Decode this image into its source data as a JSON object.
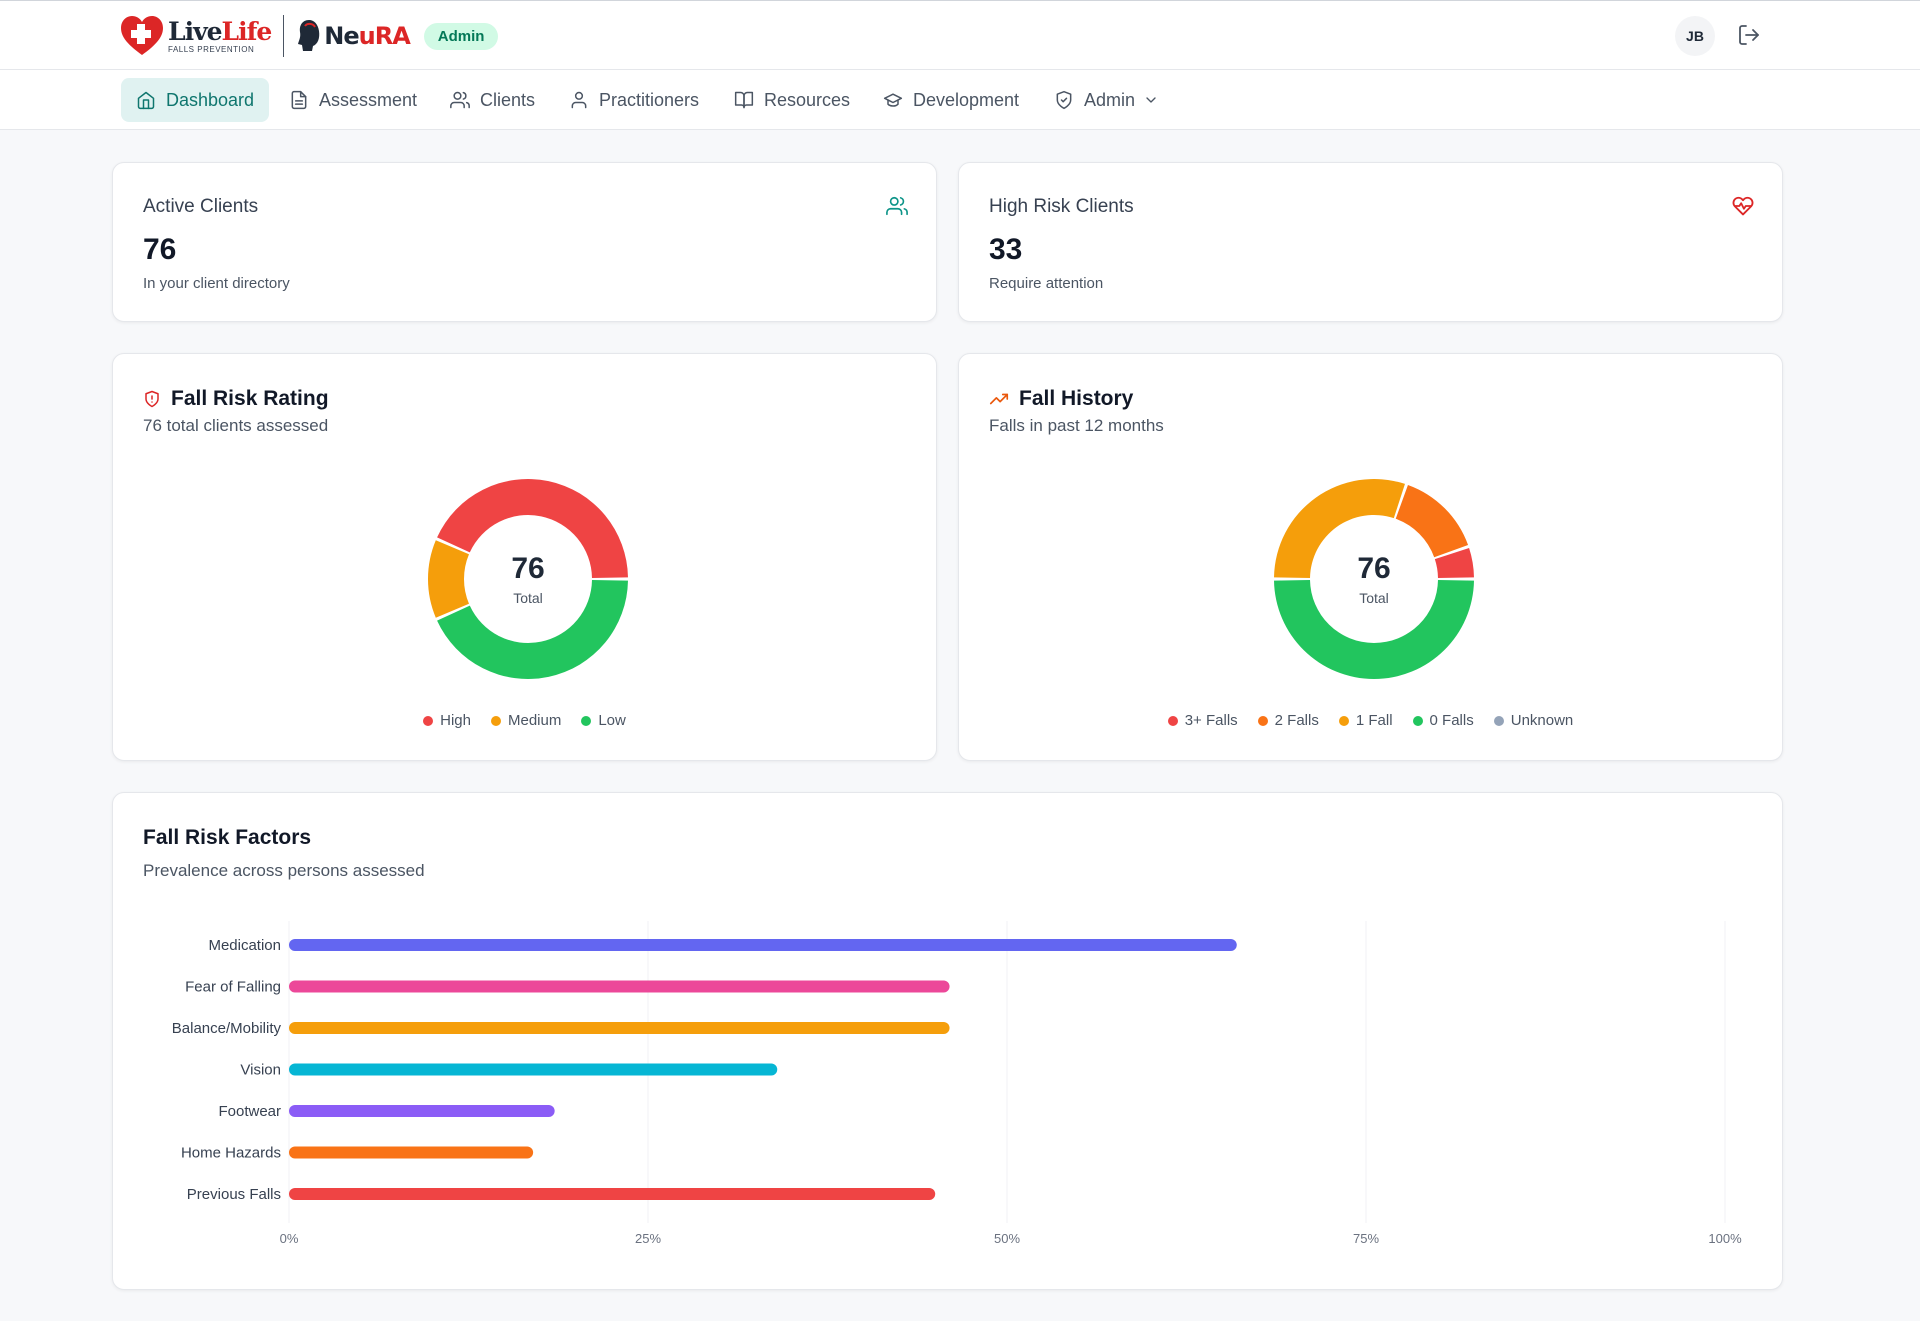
{
  "header": {
    "brand_primary": "Live",
    "brand_secondary": "Life",
    "brand_tagline": "FALLS PREVENTION",
    "partner_prefix": "Ne",
    "partner_suffix": "uRA",
    "role_badge": "Admin",
    "user_initials": "JB"
  },
  "nav": {
    "items": [
      {
        "label": "Dashboard",
        "icon": "home-icon",
        "active": true
      },
      {
        "label": "Assessment",
        "icon": "document-icon"
      },
      {
        "label": "Clients",
        "icon": "users-icon"
      },
      {
        "label": "Practitioners",
        "icon": "user-icon"
      },
      {
        "label": "Resources",
        "icon": "book-icon"
      },
      {
        "label": "Development",
        "icon": "graduation-cap-icon"
      },
      {
        "label": "Admin",
        "icon": "shield-icon",
        "has_dropdown": true
      }
    ]
  },
  "stats": {
    "active_clients": {
      "label": "Active Clients",
      "value": "76",
      "sub": "In your client directory",
      "icon": "users-icon",
      "icon_color": "#0d9488"
    },
    "high_risk": {
      "label": "High Risk Clients",
      "value": "33",
      "sub": "Require attention",
      "icon": "heart-pulse-icon",
      "icon_color": "#dc2626"
    }
  },
  "colors": {
    "red": "#ef4444",
    "amber": "#f59e0b",
    "green": "#22c55e",
    "orange": "#f97316",
    "gray": "#94a3b8",
    "indigo": "#6366f1",
    "pink": "#ec4899",
    "cyan": "#06b6d4",
    "purple": "#8b5cf6",
    "teal": "#0f766e"
  },
  "chart_data": [
    {
      "type": "pie",
      "title": "Fall Risk Rating",
      "subtitle": "76 total clients assessed",
      "center_value": "76",
      "center_label": "Total",
      "categories": [
        "High",
        "Medium",
        "Low"
      ],
      "values": [
        33,
        10,
        33
      ],
      "colors": [
        "#ef4444",
        "#f59e0b",
        "#22c55e"
      ]
    },
    {
      "type": "pie",
      "title": "Fall History",
      "subtitle": "Falls in past 12 months",
      "center_value": "76",
      "center_label": "Total",
      "categories": [
        "3+ Falls",
        "2 Falls",
        "1 Fall",
        "0 Falls",
        "Unknown"
      ],
      "values": [
        4,
        11,
        23,
        38,
        0
      ],
      "colors": [
        "#ef4444",
        "#f97316",
        "#f59e0b",
        "#22c55e",
        "#94a3b8"
      ],
      "slice_order": [
        "0 Falls",
        "1 Fall",
        "2 Falls",
        "3+ Falls"
      ]
    },
    {
      "type": "bar",
      "orientation": "horizontal",
      "title": "Fall Risk Factors",
      "subtitle": "Prevalence across persons assessed",
      "categories": [
        "Medication",
        "Fear of Falling",
        "Balance/Mobility",
        "Vision",
        "Footwear",
        "Home Hazards",
        "Previous Falls"
      ],
      "values": [
        66,
        46,
        46,
        34,
        18.5,
        17,
        45
      ],
      "colors": [
        "#6366f1",
        "#ec4899",
        "#f59e0b",
        "#06b6d4",
        "#8b5cf6",
        "#f97316",
        "#ef4444"
      ],
      "xlim": [
        0,
        100
      ],
      "xticks": [
        "0%",
        "25%",
        "50%",
        "75%",
        "100%"
      ],
      "grid": true
    }
  ]
}
